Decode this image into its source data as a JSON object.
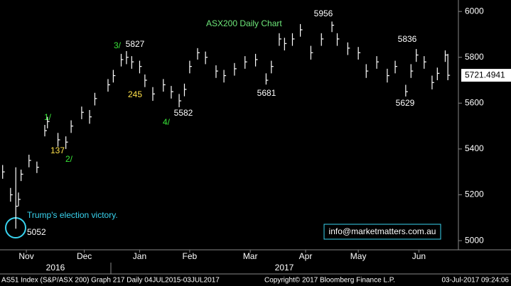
{
  "chart_data": {
    "type": "ohlc",
    "title": "ASX200 Daily Chart",
    "x": [
      1,
      4,
      6,
      7,
      8,
      11,
      14,
      17,
      18,
      22,
      25,
      27,
      31,
      34,
      36,
      41,
      43,
      46,
      48,
      50,
      53,
      55,
      58,
      62,
      65,
      68,
      70,
      72,
      75,
      78,
      82,
      85,
      89,
      93,
      97,
      101,
      103,
      106,
      108,
      111,
      114,
      118,
      122,
      126,
      128,
      132,
      136,
      139,
      143,
      147,
      150,
      154,
      156,
      158,
      161,
      164,
      166,
      169,
      170
    ],
    "high": [
      5330,
      5230,
      5320,
      5210,
      5310,
      5375,
      5345,
      5505,
      5540,
      5470,
      5455,
      5525,
      5585,
      5570,
      5645,
      5705,
      5745,
      5815,
      5827,
      5805,
      5785,
      5725,
      5670,
      5705,
      5675,
      5640,
      5685,
      5785,
      5840,
      5825,
      5765,
      5745,
      5775,
      5805,
      5815,
      5730,
      5785,
      5905,
      5885,
      5905,
      5945,
      5850,
      5905,
      5956,
      5905,
      5865,
      5845,
      5770,
      5805,
      5750,
      5785,
      5680,
      5770,
      5836,
      5805,
      5720,
      5755,
      5830,
      5815
    ],
    "low": [
      5270,
      5170,
      5052,
      5150,
      5260,
      5320,
      5295,
      5455,
      5490,
      5410,
      5400,
      5470,
      5530,
      5510,
      5590,
      5650,
      5690,
      5760,
      5770,
      5750,
      5730,
      5670,
      5610,
      5650,
      5620,
      5582,
      5630,
      5730,
      5790,
      5770,
      5710,
      5690,
      5720,
      5750,
      5760,
      5681,
      5730,
      5850,
      5830,
      5850,
      5890,
      5790,
      5850,
      5910,
      5850,
      5810,
      5790,
      5710,
      5750,
      5690,
      5730,
      5629,
      5710,
      5780,
      5750,
      5660,
      5700,
      5780,
      5700
    ],
    "close": [
      5300,
      5200,
      5150,
      5180,
      5290,
      5350,
      5320,
      5480,
      5520,
      5440,
      5430,
      5500,
      5560,
      5540,
      5620,
      5680,
      5720,
      5790,
      5800,
      5780,
      5760,
      5700,
      5640,
      5680,
      5650,
      5610,
      5660,
      5760,
      5820,
      5800,
      5740,
      5720,
      5750,
      5780,
      5790,
      5700,
      5760,
      5880,
      5860,
      5880,
      5920,
      5820,
      5880,
      5940,
      5880,
      5840,
      5820,
      5740,
      5780,
      5720,
      5760,
      5650,
      5740,
      5810,
      5780,
      5690,
      5730,
      5810,
      5721.4941
    ],
    "color": "#ffffff",
    "last_price": 5721.4941,
    "xlim": [
      0,
      174
    ],
    "xticks": [
      {
        "value": 10,
        "label": "Nov"
      },
      {
        "value": 32,
        "label": "Dec"
      },
      {
        "value": 53,
        "label": "Jan"
      },
      {
        "value": 72,
        "label": "Feb"
      },
      {
        "value": 95,
        "label": "Mar"
      },
      {
        "value": 116,
        "label": "Apr"
      },
      {
        "value": 136,
        "label": "May"
      },
      {
        "value": 159,
        "label": "Jun"
      }
    ],
    "years": [
      "2016",
      "2017"
    ],
    "ylim": [
      4960,
      6050
    ],
    "yticks": [
      5000,
      5200,
      5400,
      5600,
      5800,
      6000
    ],
    "grid": false,
    "annotations": [
      "5956",
      "3/",
      "5827",
      "245",
      "5582",
      "4/",
      "5681",
      "5836",
      "5629",
      "1/",
      "137",
      "2/",
      "Trump's election victory.",
      "5052",
      "info@marketmatters.com.au"
    ],
    "footer": [
      "AS51 Index (S&P/ASX 200) Graph 217  Daily 04JUL2015-03JUL2017",
      "Copyright© 2017 Bloomberg Finance L.P.",
      "03-Jul-2017 09:24:06"
    ]
  }
}
